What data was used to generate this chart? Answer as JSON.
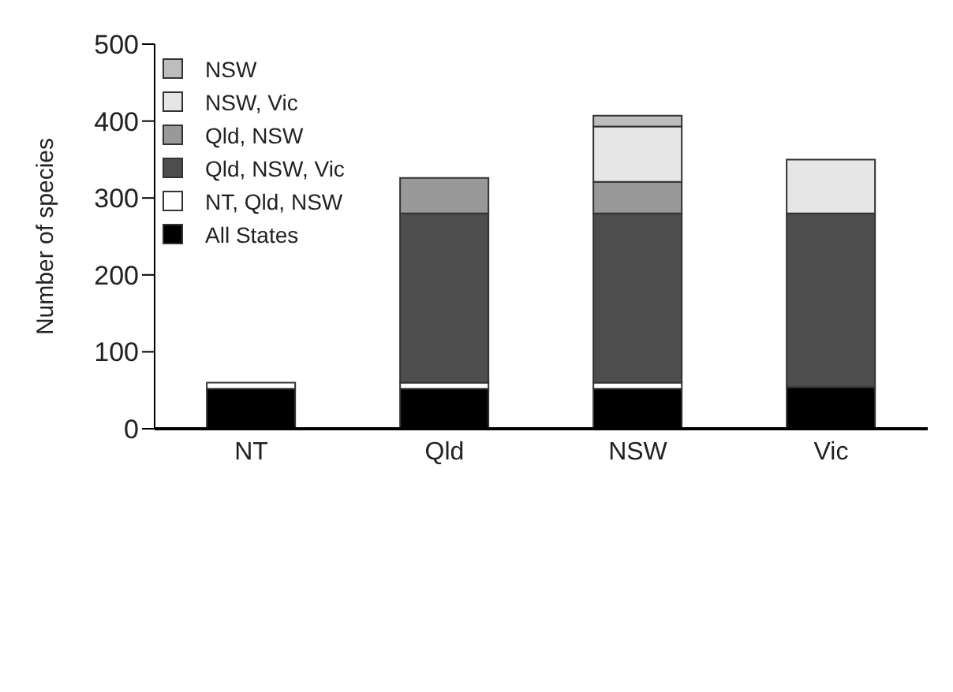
{
  "chart_data": {
    "type": "bar",
    "ylabel": "Number of species",
    "categories": [
      "NT",
      "Qld",
      "NSW",
      "Vic"
    ],
    "stacked": true,
    "ylim": [
      0,
      500
    ],
    "yticks": [
      0,
      100,
      200,
      300,
      400,
      500
    ],
    "grid": false,
    "legend": "top left",
    "series": [
      {
        "name": "All States",
        "color": "#000000",
        "values": [
          52,
          52,
          52,
          54
        ]
      },
      {
        "name": "NT, Qld, NSW",
        "color": "#ffffff",
        "values": [
          8,
          8,
          8,
          0
        ]
      },
      {
        "name": "Qld, NSW, Vic",
        "color": "#4d4d4d",
        "values": [
          0,
          220,
          220,
          226
        ]
      },
      {
        "name": "Qld, NSW",
        "color": "#999999",
        "values": [
          0,
          46,
          41,
          0
        ]
      },
      {
        "name": "NSW, Vic",
        "color": "#e6e6e6",
        "values": [
          0,
          0,
          72,
          70
        ]
      },
      {
        "name": "NSW",
        "color": "#bdbdbd",
        "values": [
          0,
          0,
          14,
          0
        ]
      }
    ]
  }
}
